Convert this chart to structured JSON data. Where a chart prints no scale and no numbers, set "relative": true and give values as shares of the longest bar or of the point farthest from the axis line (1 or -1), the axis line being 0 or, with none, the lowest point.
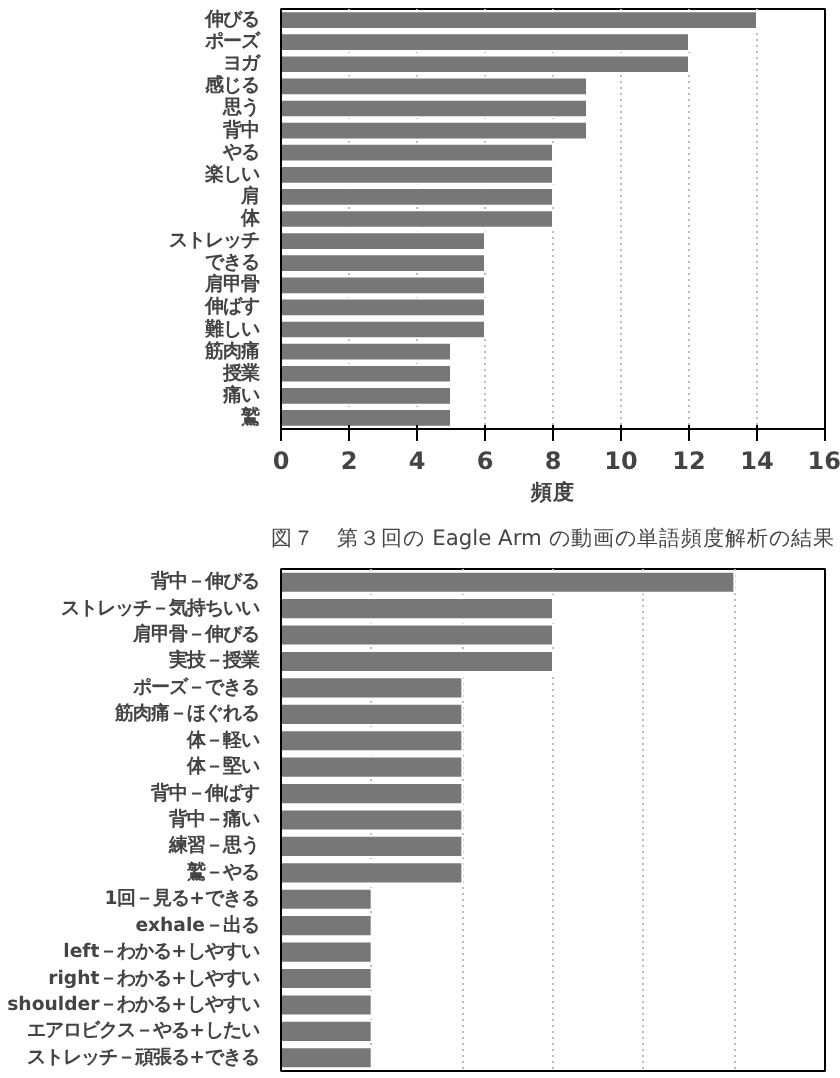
{
  "chart_data": [
    {
      "type": "bar",
      "orientation": "horizontal",
      "title": "図７　第３回の Eagle Arm の動画の単語頻度解析の結果",
      "xlabel": "頻度",
      "categories": [
        "伸びる",
        "ポーズ",
        "ヨガ",
        "感じる",
        "思う",
        "背中",
        "やる",
        "楽しい",
        "肩",
        "体",
        "ストレッチ",
        "できる",
        "肩甲骨",
        "伸ばす",
        "難しい",
        "筋肉痛",
        "授業",
        "痛い",
        "鷲"
      ],
      "values": [
        14,
        12,
        12,
        9,
        9,
        9,
        8,
        8,
        8,
        8,
        6,
        6,
        6,
        6,
        6,
        5,
        5,
        5,
        5
      ],
      "color": "#777777",
      "xlim": [
        0,
        16
      ],
      "xticks": [
        0,
        2,
        4,
        6,
        8,
        10,
        12,
        14,
        16
      ],
      "grid": "x"
    },
    {
      "type": "bar",
      "orientation": "horizontal",
      "relative": true,
      "categories": [
        "背中－伸びる",
        "ストレッチ－気持ちいい",
        "肩甲骨－伸びる",
        "実技－授業",
        "ポーズ－できる",
        "筋肉痛－ほぐれる",
        "体－軽い",
        "体－堅い",
        "背中－伸ばす",
        "背中－痛い",
        "練習－思う",
        "鷲－やる",
        "1回－見る+できる",
        "exhale－出る",
        "left－わかる+しやすい",
        "right－わかる+しやすい",
        "shoulder－わかる+しやすい",
        "エアロビクス－やる+したい",
        "ストレッチ－頑張る+できる"
      ],
      "values": [
        1,
        0.6,
        0.6,
        0.6,
        0.4,
        0.4,
        0.4,
        0.4,
        0.4,
        0.4,
        0.4,
        0.4,
        0.2,
        0.2,
        0.2,
        0.2,
        0.2,
        0.2,
        0.2
      ],
      "color": "#777777",
      "grid": "x"
    }
  ]
}
